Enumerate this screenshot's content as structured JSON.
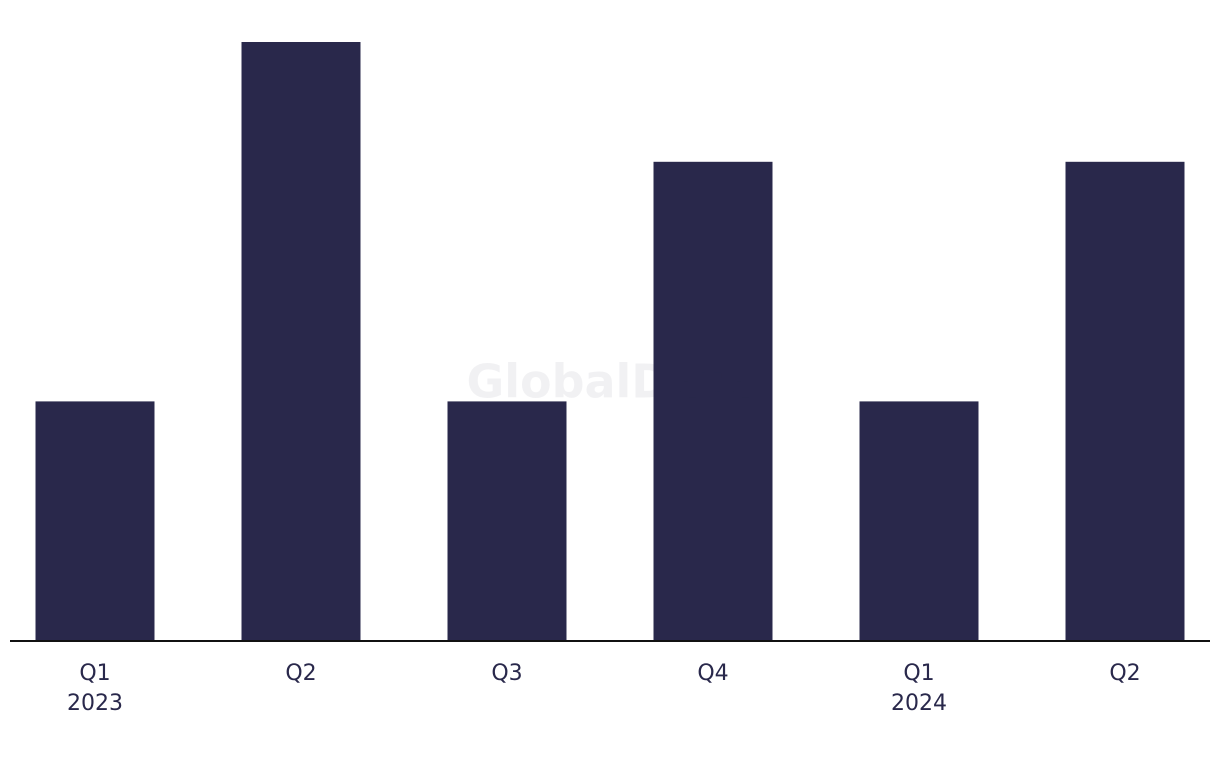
{
  "chart_data": {
    "type": "bar",
    "watermark": "GlobalData",
    "categories": [
      "Q1\n2023",
      "Q2",
      "Q3",
      "Q4",
      "Q1\n2024",
      "Q2"
    ],
    "values": [
      2,
      5,
      2,
      4,
      2,
      4
    ],
    "color": "#29284b",
    "ylim": [
      0,
      5
    ]
  }
}
